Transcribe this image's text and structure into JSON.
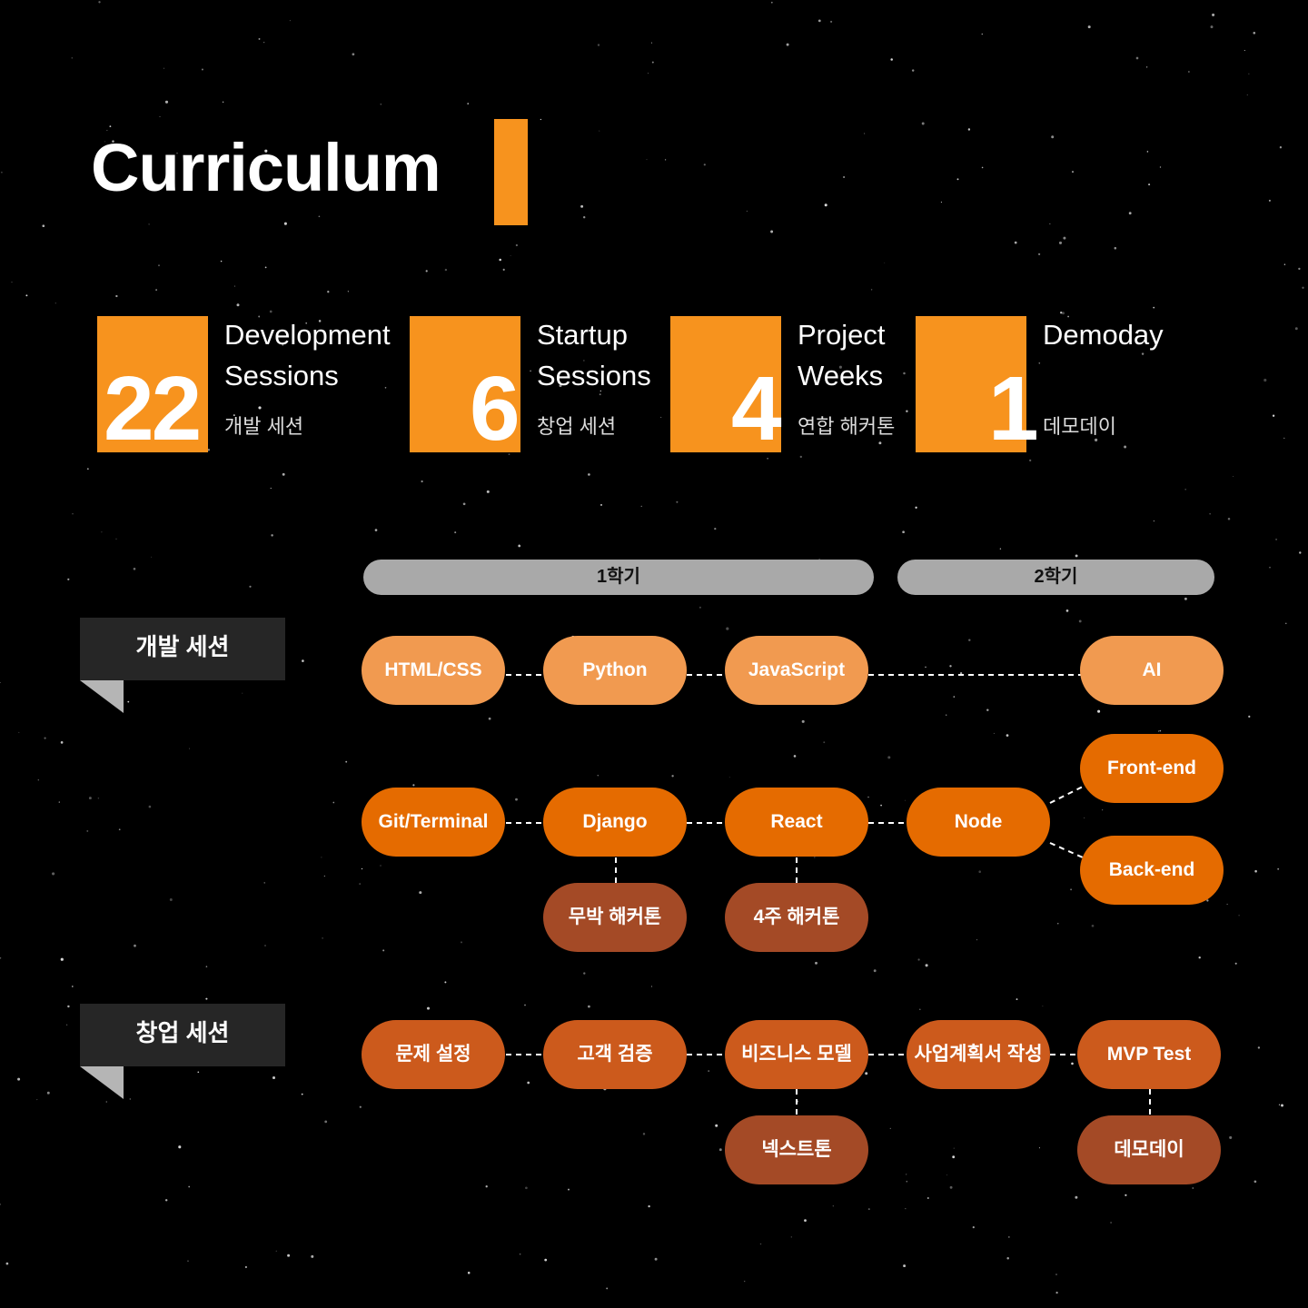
{
  "title": "Curriculum",
  "colors": {
    "accent": "#f7931e",
    "light_node": "#f19a50",
    "mid_node": "#e56b00",
    "dark_node": "#a44a26",
    "startup_node": "#cc5a1c",
    "semester_bar": "#a9a9a9"
  },
  "stats": [
    {
      "number": "22",
      "en": "Development\nSessions",
      "ko": "개발 세션"
    },
    {
      "number": "6",
      "en": "Startup\nSessions",
      "ko": "창업 세션"
    },
    {
      "number": "4",
      "en": "Project\nWeeks",
      "ko": "연합 해커톤"
    },
    {
      "number": "1",
      "en": "Demoday",
      "ko": "데모데이"
    }
  ],
  "semesters": [
    "1학기",
    "2학기"
  ],
  "sections": {
    "dev": "개발 세션",
    "startup": "창업 세션"
  },
  "nodes": {
    "html_css": "HTML/CSS",
    "python": "Python",
    "javascript": "JavaScript",
    "ai": "AI",
    "frontend": "Front-end",
    "backend": "Back-end",
    "git_terminal": "Git/Terminal",
    "django": "Django",
    "react": "React",
    "node": "Node",
    "mubak_hackathon": "무박 해커톤",
    "four_week_hackathon": "4주 해커톤",
    "problem": "문제 설정",
    "customer": "고객 검증",
    "business_model": "비즈니스 모델",
    "business_plan": "사업계획서 작성",
    "mvp_test": "MVP Test",
    "nextton": "넥스트톤",
    "demoday": "데모데이"
  }
}
